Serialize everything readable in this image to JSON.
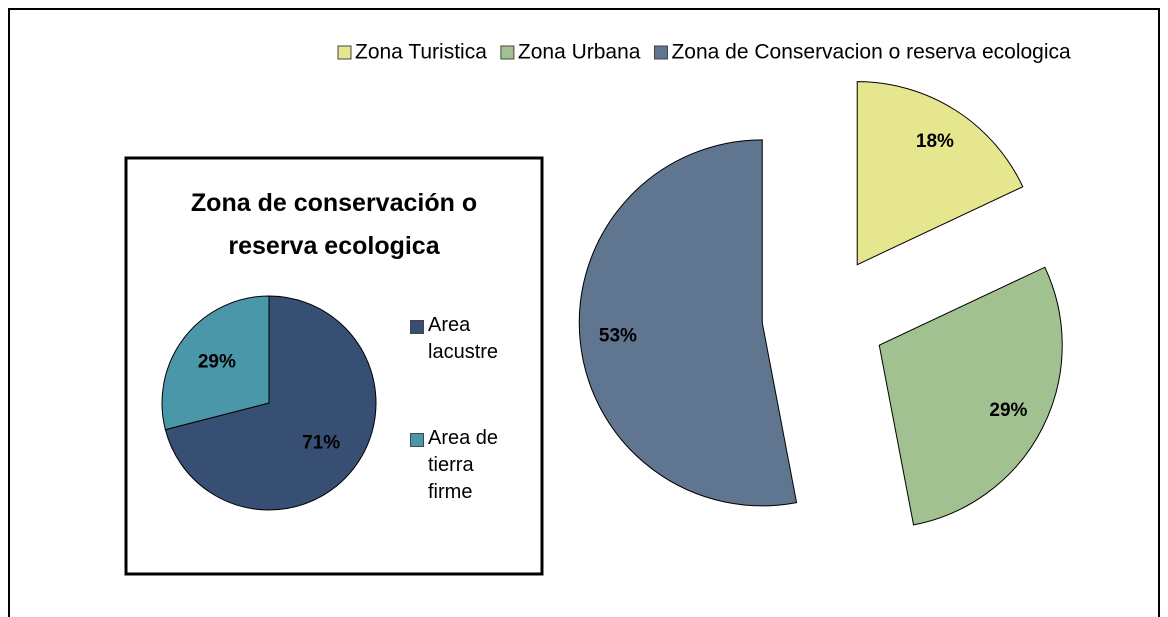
{
  "chart_data": [
    {
      "type": "pie",
      "categories": [
        "Zona Turistica",
        "Zona Urbana",
        "Zona de Conservacion o reserva ecologica"
      ],
      "values": [
        18,
        29,
        53
      ],
      "value_labels": [
        "18%",
        "29%",
        "53%"
      ],
      "colors": [
        "#e6e68e",
        "#a2c191",
        "#5f7590"
      ],
      "exploded": true,
      "legend": "top"
    },
    {
      "type": "pie",
      "title": "Zona de conservación o reserva ecologica",
      "categories": [
        "Area lacustre",
        "Area de tierra firme"
      ],
      "values": [
        71,
        29
      ],
      "value_labels": [
        "71%",
        "29%"
      ],
      "colors": [
        "#374f73",
        "#4b97aa"
      ],
      "exploded": false,
      "legend": "right"
    }
  ]
}
